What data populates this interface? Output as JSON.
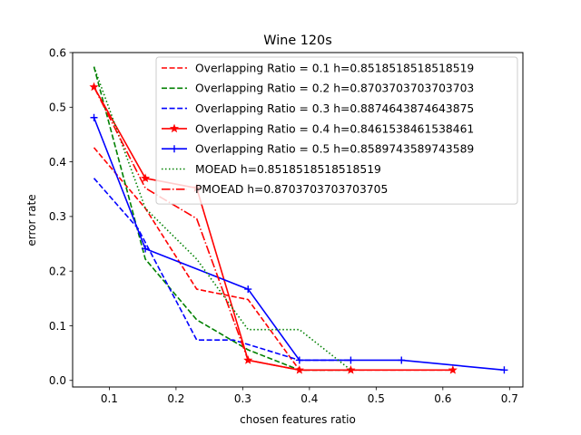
{
  "chart_data": {
    "type": "line",
    "title": "Wine 120s",
    "xlabel": "chosen features ratio",
    "ylabel": "error rate",
    "xlim": [
      0.045,
      0.72
    ],
    "ylim": [
      -0.012,
      0.6
    ],
    "xticks": [
      0.1,
      0.2,
      0.3,
      0.4,
      0.5,
      0.6,
      0.7
    ],
    "yticks": [
      0.0,
      0.1,
      0.2,
      0.3,
      0.4,
      0.5,
      0.6
    ],
    "x_tick_labels": [
      "0.1",
      "0.2",
      "0.3",
      "0.4",
      "0.5",
      "0.6",
      "0.7"
    ],
    "y_tick_labels": [
      "0.0",
      "0.1",
      "0.2",
      "0.3",
      "0.4",
      "0.5",
      "0.6"
    ],
    "grid": false,
    "legend_position": "top-right",
    "series": [
      {
        "name": "Overlapping Ratio = 0.1 h=0.8518518518518519",
        "color": "#ff0000",
        "dash": "dashed",
        "marker": "none",
        "x": [
          0.077,
          0.154,
          0.231,
          0.308,
          0.385,
          0.462,
          0.538,
          0.615
        ],
        "y": [
          0.426,
          0.315,
          0.167,
          0.148,
          0.019,
          0.019,
          0.019,
          0.019
        ]
      },
      {
        "name": "Overlapping Ratio = 0.2 h=0.8703703703703703",
        "color": "#008000",
        "dash": "dashed",
        "marker": "none",
        "x": [
          0.077,
          0.154,
          0.231,
          0.308,
          0.385,
          0.462
        ],
        "y": [
          0.574,
          0.222,
          0.111,
          0.056,
          0.019,
          0.019
        ]
      },
      {
        "name": "Overlapping Ratio = 0.3 h=0.8874643874643875",
        "color": "#0000ff",
        "dash": "dashed",
        "marker": "none",
        "x": [
          0.077,
          0.143,
          0.231,
          0.286,
          0.385,
          0.462
        ],
        "y": [
          0.37,
          0.278,
          0.074,
          0.074,
          0.037,
          0.037
        ]
      },
      {
        "name": "Overlapping Ratio = 0.4 h=0.8461538461538461",
        "color": "#ff0000",
        "dash": "solid",
        "marker": "star",
        "x": [
          0.077,
          0.154,
          0.231,
          0.308,
          0.385,
          0.462,
          0.615
        ],
        "y": [
          0.537,
          0.37,
          0.352,
          0.037,
          0.019,
          0.019,
          0.019
        ]
      },
      {
        "name": "Overlapping Ratio = 0.5 h=0.8589743589743589",
        "color": "#0000ff",
        "dash": "solid",
        "marker": "plus",
        "x": [
          0.077,
          0.154,
          0.308,
          0.385,
          0.462,
          0.538,
          0.692
        ],
        "y": [
          0.481,
          0.241,
          0.167,
          0.037,
          0.037,
          0.037,
          0.019
        ]
      },
      {
        "name": "MOEAD h=0.8518518518518519",
        "color": "#008000",
        "dash": "dotted",
        "marker": "none",
        "x": [
          0.077,
          0.154,
          0.231,
          0.308,
          0.385,
          0.462
        ],
        "y": [
          0.574,
          0.315,
          0.222,
          0.093,
          0.093,
          0.019
        ]
      },
      {
        "name": "PMOEAD h=0.8703703703703705",
        "color": "#ff0000",
        "dash": "dashdot",
        "marker": "none",
        "x": [
          0.077,
          0.154,
          0.231,
          0.308,
          0.385,
          0.462
        ],
        "y": [
          0.537,
          0.352,
          0.296,
          0.037,
          0.019,
          0.019
        ]
      }
    ]
  }
}
